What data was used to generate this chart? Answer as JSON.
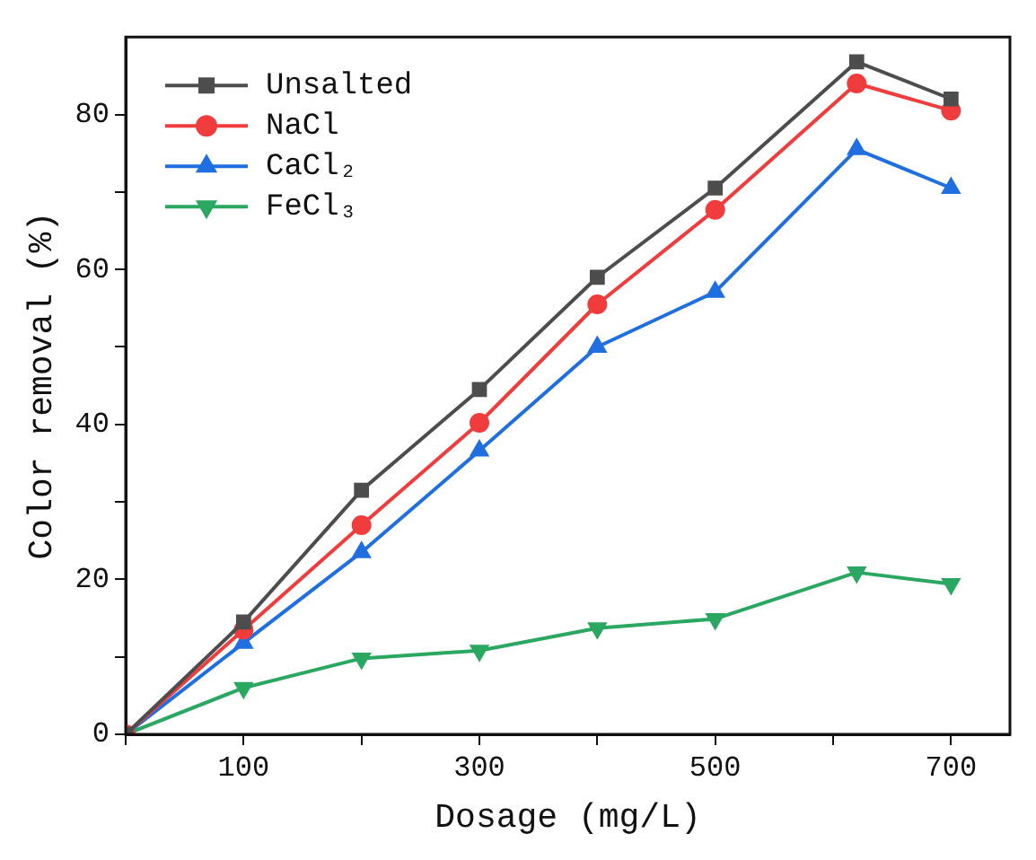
{
  "chart_data": {
    "type": "line",
    "xlabel": "Dosage (mg/L)",
    "ylabel": "Color removal (%)",
    "x": [
      0,
      100,
      200,
      300,
      400,
      500,
      620,
      700
    ],
    "series": [
      {
        "name": "Unsalted",
        "color": "#4d4d4d",
        "marker": "square",
        "values": [
          0,
          14.5,
          31.5,
          44.5,
          59,
          70.5,
          86.8,
          82
        ]
      },
      {
        "name": "NaCl",
        "color": "#f03c3c",
        "marker": "circle",
        "values": [
          0,
          13.5,
          27,
          40.2,
          55.5,
          67.7,
          84,
          80.5
        ]
      },
      {
        "name": "CaCl₂",
        "color": "#1f6fe0",
        "marker": "triangle",
        "values": [
          0,
          11.8,
          23.5,
          36.6,
          50,
          57.1,
          75.5,
          70.5
        ]
      },
      {
        "name": "FeCl₃",
        "color": "#2aa760",
        "marker": "triangle-down",
        "values": [
          0,
          6,
          9.8,
          10.8,
          13.7,
          14.9,
          20.9,
          19.4
        ]
      }
    ],
    "xlim": [
      0,
      750
    ],
    "xticks": [
      {
        "value": 0,
        "label": null
      },
      100,
      {
        "value": 200,
        "label": null
      },
      300,
      {
        "value": 400,
        "label": null
      },
      500,
      {
        "value": 600,
        "label": null
      },
      700
    ],
    "ylim": [
      0,
      90
    ],
    "yticks": [
      0,
      {
        "value": 10,
        "label": null
      },
      20,
      {
        "value": 30,
        "label": null
      },
      40,
      {
        "value": 50,
        "label": null
      },
      60,
      {
        "value": 70,
        "label": null
      },
      80
    ],
    "grid": false,
    "legend": "top left",
    "line_style": "solid"
  }
}
